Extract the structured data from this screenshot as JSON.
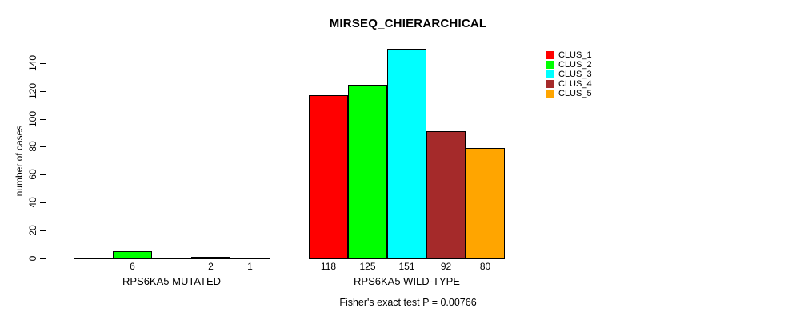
{
  "chart_data": {
    "type": "bar",
    "title": "MIRSEQ_CHIERARCHICAL",
    "ylabel": "number of cases",
    "footnote": "Fisher's exact test P = 0.00766",
    "ylim": [
      0,
      140
    ],
    "yticks": [
      0,
      20,
      40,
      60,
      80,
      100,
      120,
      140
    ],
    "grid": false,
    "legend_position": "top-right",
    "series_colors": [
      "#FF0000",
      "#00FF00",
      "#00FFFF",
      "#A52A2A",
      "#FFA500"
    ],
    "legend": [
      {
        "name": "CLUS_1",
        "color": "#FF0000"
      },
      {
        "name": "CLUS_2",
        "color": "#00FF00"
      },
      {
        "name": "CLUS_3",
        "color": "#00FFFF"
      },
      {
        "name": "CLUS_4",
        "color": "#A52A2A"
      },
      {
        "name": "CLUS_5",
        "color": "#FFA500"
      }
    ],
    "categories": [
      "RPS6KA5 MUTATED",
      "RPS6KA5 WILD-TYPE"
    ],
    "groups": [
      {
        "label": "RPS6KA5 MUTATED",
        "values": [
          0,
          6,
          0,
          2,
          1
        ],
        "bar_labels": [
          "",
          "6",
          "",
          "2",
          "1"
        ]
      },
      {
        "label": "RPS6KA5 WILD-TYPE",
        "values": [
          118,
          125,
          151,
          92,
          80
        ],
        "bar_labels": [
          "118",
          "125",
          "151",
          "92",
          "80"
        ]
      }
    ]
  }
}
